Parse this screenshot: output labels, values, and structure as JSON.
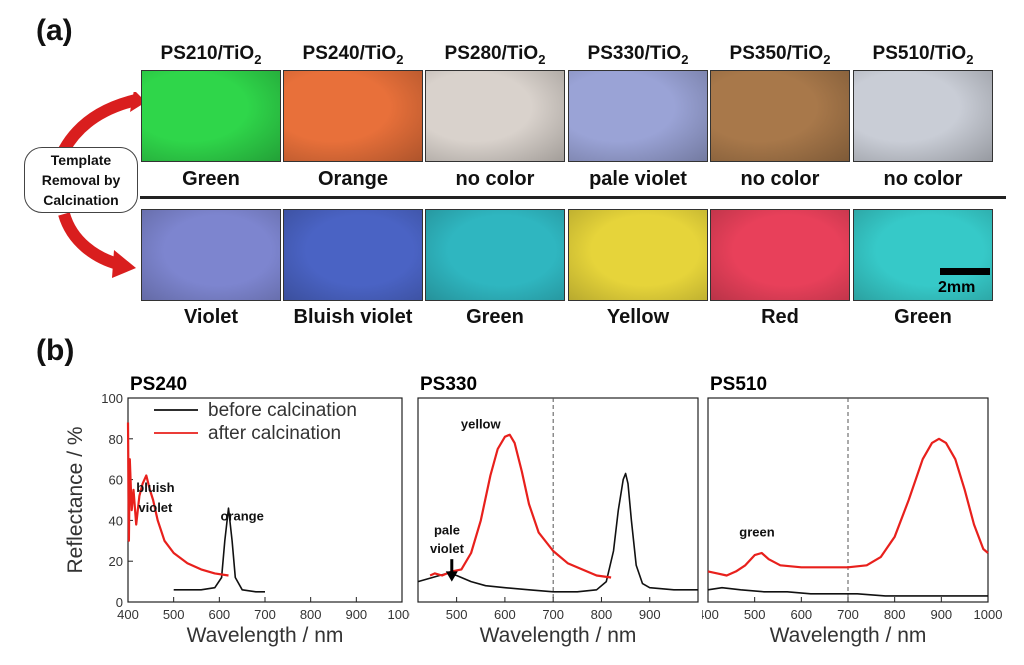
{
  "panel_a": {
    "label": "(a)",
    "samples": [
      {
        "name": "PS210/TiO",
        "sub": "2",
        "before": "Green",
        "after": "Violet"
      },
      {
        "name": "PS240/TiO",
        "sub": "2",
        "before": "Orange",
        "after": "Bluish violet"
      },
      {
        "name": "PS280/TiO",
        "sub": "2",
        "before": "no color",
        "after": "Green"
      },
      {
        "name": "PS330/TiO",
        "sub": "2",
        "before": "pale violet",
        "after": "Yellow"
      },
      {
        "name": "PS350/TiO",
        "sub": "2",
        "before": "no color",
        "after": "Red"
      },
      {
        "name": "PS510/TiO",
        "sub": "2",
        "before": "no color",
        "after": "Green"
      }
    ],
    "callout_lines": [
      "Template",
      "Removal by",
      "Calcination"
    ],
    "scale_bar": "2mm",
    "colors": {
      "before": [
        "#2fd64a",
        "#e8703a",
        "#d9d2cc",
        "#9aa3d6",
        "#a8784a",
        "#c9cdd6"
      ],
      "after": [
        "#7d85cf",
        "#4a63c4",
        "#2fb6c0",
        "#e6d43a",
        "#e8405a",
        "#36c9c8"
      ]
    }
  },
  "panel_b": {
    "label": "(b)",
    "chart_data": [
      {
        "type": "line",
        "title": "PS240",
        "xlabel": "Wavelength / nm",
        "ylabel": "Reflectance / %",
        "xlim": [
          400,
          1000
        ],
        "ylim": [
          0,
          100
        ],
        "xticks": [
          400,
          500,
          600,
          700,
          800,
          900,
          1000
        ],
        "yticks": [
          0,
          20,
          40,
          60,
          80,
          100
        ],
        "legend": [
          "before calcination",
          "after calcination"
        ],
        "series": [
          {
            "name": "before calcination",
            "color": "#111111",
            "x": [
              500,
              560,
              590,
              605,
              612,
              620,
              628,
              635,
              650,
              680,
              700
            ],
            "y": [
              6,
              6,
              7,
              12,
              30,
              46,
              30,
              12,
              6,
              5,
              5
            ]
          },
          {
            "name": "after calcination",
            "color": "#e8201c",
            "x": [
              400,
              402,
              404,
              408,
              412,
              418,
              425,
              432,
              440,
              448,
              455,
              465,
              480,
              500,
              530,
              560,
              590,
              620
            ],
            "y": [
              88,
              30,
              70,
              45,
              55,
              38,
              52,
              58,
              62,
              55,
              50,
              40,
              30,
              24,
              19,
              16,
              14,
              13
            ]
          }
        ],
        "annotations": [
          {
            "text": "bluish",
            "x": 460,
            "y": 54
          },
          {
            "text": "violet",
            "x": 460,
            "y": 44
          },
          {
            "text": "orange",
            "x": 650,
            "y": 40
          }
        ]
      },
      {
        "type": "line",
        "title": "PS330",
        "xlabel": "Wavelength / nm",
        "ylabel": "",
        "xlim": [
          420,
          1000
        ],
        "ylim": [
          0,
          100
        ],
        "xticks": [
          500,
          600,
          700,
          800,
          900
        ],
        "yticks": [],
        "vline": 700,
        "series": [
          {
            "name": "before calcination",
            "color": "#111111",
            "x": [
              420,
              450,
              480,
              500,
              530,
              560,
              600,
              650,
              700,
              750,
              790,
              810,
              825,
              835,
              845,
              850,
              855,
              862,
              872,
              885,
              900,
              950,
              1000
            ],
            "y": [
              10,
              12,
              14,
              13,
              10,
              8,
              7,
              6,
              5,
              5,
              6,
              10,
              25,
              45,
              60,
              63,
              58,
              40,
              18,
              9,
              7,
              6,
              6
            ]
          },
          {
            "name": "after calcination",
            "color": "#e8201c",
            "x": [
              445,
              455,
              470,
              490,
              510,
              530,
              550,
              570,
              585,
              600,
              610,
              620,
              635,
              650,
              670,
              700,
              730,
              760,
              790,
              820
            ],
            "y": [
              13,
              14,
              13,
              15,
              16,
              24,
              40,
              62,
              75,
              81,
              82,
              78,
              64,
              48,
              34,
              25,
              19,
              16,
              13,
              12
            ]
          }
        ],
        "annotations": [
          {
            "text": "yellow",
            "x": 550,
            "y": 85
          },
          {
            "text": "pale",
            "x": 480,
            "y": 33
          },
          {
            "text": "violet",
            "x": 480,
            "y": 24
          }
        ]
      },
      {
        "type": "line",
        "title": "PS510",
        "xlabel": "Wavelength / nm",
        "ylabel": "",
        "xlim": [
          400,
          1000
        ],
        "ylim": [
          0,
          100
        ],
        "xticks": [
          400,
          500,
          600,
          700,
          800,
          900,
          1000
        ],
        "yticks": [],
        "vline": 700,
        "series": [
          {
            "name": "before calcination",
            "color": "#111111",
            "x": [
              400,
              430,
              470,
              520,
              570,
              620,
              670,
              720,
              780,
              840,
              900,
              950,
              1000
            ],
            "y": [
              6,
              7,
              6,
              5,
              5,
              4,
              4,
              4,
              3,
              3,
              3,
              3,
              3
            ]
          },
          {
            "name": "after calcination",
            "color": "#e8201c",
            "x": [
              400,
              420,
              440,
              460,
              480,
              500,
              515,
              530,
              555,
              600,
              650,
              700,
              740,
              770,
              800,
              830,
              860,
              880,
              895,
              910,
              930,
              950,
              970,
              990,
              1000
            ],
            "y": [
              15,
              14,
              13,
              15,
              18,
              23,
              24,
              21,
              18,
              17,
              17,
              17,
              18,
              22,
              32,
              50,
              70,
              78,
              80,
              78,
              70,
              55,
              38,
              26,
              24
            ]
          }
        ],
        "annotations": [
          {
            "text": "green",
            "x": 505,
            "y": 32
          }
        ]
      }
    ]
  }
}
